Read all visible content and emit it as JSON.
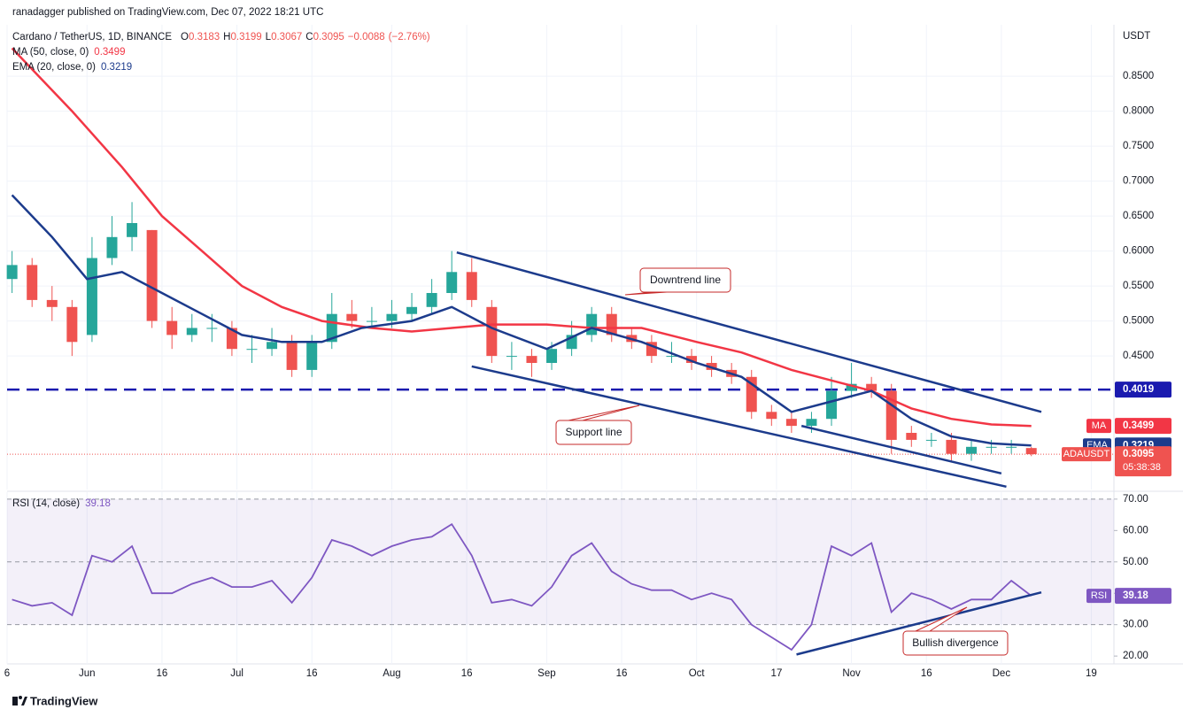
{
  "header": "ranadagger published on TradingView.com, Dec 07, 2022 18:21 UTC",
  "footer": "TradingView",
  "chart_data": [
    {
      "type": "candlestick",
      "title": "Cardano / TetherUS, 1D, BINANCE",
      "symbol": "ADAUSDT",
      "countdown": "05:38:38",
      "axis_label": "USDT",
      "x": [
        "2022-05-17",
        "2022-05-21",
        "2022-05-25",
        "2022-05-29",
        "2022-06-02",
        "2022-06-06",
        "2022-06-10",
        "2022-06-14",
        "2022-06-18",
        "2022-06-22",
        "2022-06-26",
        "2022-06-30",
        "2022-07-04",
        "2022-07-08",
        "2022-07-12",
        "2022-07-16",
        "2022-07-20",
        "2022-07-24",
        "2022-07-28",
        "2022-08-01",
        "2022-08-05",
        "2022-08-09",
        "2022-08-13",
        "2022-08-17",
        "2022-08-21",
        "2022-08-25",
        "2022-08-29",
        "2022-09-02",
        "2022-09-06",
        "2022-09-10",
        "2022-09-14",
        "2022-09-18",
        "2022-09-22",
        "2022-09-26",
        "2022-09-30",
        "2022-10-04",
        "2022-10-08",
        "2022-10-12",
        "2022-10-16",
        "2022-10-20",
        "2022-10-24",
        "2022-10-28",
        "2022-11-01",
        "2022-11-05",
        "2022-11-09",
        "2022-11-13",
        "2022-11-17",
        "2022-11-21",
        "2022-11-25",
        "2022-11-29",
        "2022-12-03",
        "2022-12-07"
      ],
      "open": [
        0.56,
        0.58,
        0.53,
        0.52,
        0.48,
        0.59,
        0.62,
        0.63,
        0.5,
        0.48,
        0.49,
        0.49,
        0.46,
        0.46,
        0.47,
        0.43,
        0.47,
        0.51,
        0.5,
        0.5,
        0.51,
        0.52,
        0.54,
        0.57,
        0.52,
        0.45,
        0.45,
        0.44,
        0.46,
        0.48,
        0.51,
        0.48,
        0.47,
        0.45,
        0.45,
        0.44,
        0.43,
        0.42,
        0.37,
        0.36,
        0.35,
        0.36,
        0.4,
        0.41,
        0.4,
        0.34,
        0.33,
        0.33,
        0.31,
        0.32,
        0.32,
        0.3183
      ],
      "high": [
        0.6,
        0.59,
        0.55,
        0.53,
        0.62,
        0.65,
        0.67,
        0.63,
        0.52,
        0.51,
        0.51,
        0.5,
        0.48,
        0.49,
        0.48,
        0.48,
        0.54,
        0.53,
        0.52,
        0.53,
        0.54,
        0.56,
        0.6,
        0.59,
        0.53,
        0.47,
        0.46,
        0.47,
        0.5,
        0.52,
        0.52,
        0.49,
        0.48,
        0.47,
        0.46,
        0.45,
        0.44,
        0.43,
        0.38,
        0.37,
        0.37,
        0.42,
        0.44,
        0.42,
        0.41,
        0.35,
        0.34,
        0.34,
        0.33,
        0.33,
        0.33,
        0.3199
      ],
      "low": [
        0.54,
        0.52,
        0.5,
        0.45,
        0.47,
        0.58,
        0.6,
        0.49,
        0.46,
        0.47,
        0.47,
        0.45,
        0.44,
        0.45,
        0.42,
        0.42,
        0.46,
        0.49,
        0.49,
        0.49,
        0.5,
        0.51,
        0.53,
        0.52,
        0.44,
        0.43,
        0.42,
        0.43,
        0.45,
        0.47,
        0.47,
        0.46,
        0.44,
        0.44,
        0.43,
        0.42,
        0.41,
        0.36,
        0.35,
        0.34,
        0.34,
        0.35,
        0.39,
        0.39,
        0.31,
        0.32,
        0.32,
        0.3,
        0.3,
        0.31,
        0.31,
        0.3067
      ],
      "close": [
        0.58,
        0.53,
        0.52,
        0.47,
        0.59,
        0.62,
        0.64,
        0.5,
        0.48,
        0.49,
        0.49,
        0.46,
        0.46,
        0.47,
        0.43,
        0.47,
        0.51,
        0.5,
        0.5,
        0.51,
        0.52,
        0.54,
        0.57,
        0.53,
        0.45,
        0.45,
        0.44,
        0.46,
        0.48,
        0.51,
        0.48,
        0.47,
        0.45,
        0.45,
        0.44,
        0.43,
        0.42,
        0.37,
        0.36,
        0.35,
        0.36,
        0.4,
        0.41,
        0.4,
        0.33,
        0.33,
        0.33,
        0.31,
        0.32,
        0.32,
        0.32,
        0.3095
      ],
      "up_color": "#26a69a",
      "down_color": "#ef5350",
      "ohlc_keys": [
        "O",
        "H",
        "L",
        "C"
      ],
      "change": {
        "value": -0.0088,
        "label": "−0.0088"
      },
      "change_pct": {
        "value": -2.76,
        "label": "(−2.76%)"
      },
      "series": [
        {
          "name": "MA (50, close, 0)",
          "short": "MA",
          "color": "#f23645",
          "x": [
            "2022-05-17",
            "2022-05-29",
            "2022-06-08",
            "2022-06-16",
            "2022-06-24",
            "2022-07-02",
            "2022-07-10",
            "2022-07-18",
            "2022-07-28",
            "2022-08-05",
            "2022-08-13",
            "2022-08-21",
            "2022-09-01",
            "2022-09-10",
            "2022-09-20",
            "2022-10-01",
            "2022-10-10",
            "2022-10-20",
            "2022-10-28",
            "2022-11-05",
            "2022-11-13",
            "2022-11-21",
            "2022-11-29",
            "2022-12-07"
          ],
          "values": [
            0.89,
            0.8,
            0.72,
            0.65,
            0.6,
            0.55,
            0.52,
            0.5,
            0.49,
            0.485,
            0.49,
            0.495,
            0.495,
            0.49,
            0.49,
            0.47,
            0.455,
            0.43,
            0.415,
            0.4,
            0.375,
            0.36,
            0.352,
            0.3499
          ]
        },
        {
          "name": "EMA (20, close, 0)",
          "short": "EMA",
          "color": "#1c3b8c",
          "x": [
            "2022-05-17",
            "2022-05-25",
            "2022-06-01",
            "2022-06-08",
            "2022-06-16",
            "2022-06-24",
            "2022-07-02",
            "2022-07-10",
            "2022-07-18",
            "2022-07-26",
            "2022-08-05",
            "2022-08-13",
            "2022-08-21",
            "2022-09-01",
            "2022-09-10",
            "2022-09-20",
            "2022-10-01",
            "2022-10-10",
            "2022-10-20",
            "2022-10-28",
            "2022-11-05",
            "2022-11-13",
            "2022-11-21",
            "2022-11-29",
            "2022-12-07"
          ],
          "values": [
            0.68,
            0.62,
            0.56,
            0.57,
            0.54,
            0.51,
            0.48,
            0.47,
            0.47,
            0.49,
            0.5,
            0.52,
            0.49,
            0.46,
            0.49,
            0.47,
            0.44,
            0.42,
            0.37,
            0.385,
            0.4,
            0.36,
            0.335,
            0.325,
            0.3219
          ]
        }
      ],
      "level": {
        "value": 0.4019,
        "color": "#1a1aaf"
      },
      "trendlines": [
        {
          "label": "Downtrend line",
          "x": [
            "2022-08-14",
            "2022-12-09"
          ],
          "y": [
            0.598,
            0.37
          ]
        },
        {
          "label": "Support line",
          "x": [
            "2022-08-17",
            "2022-12-02"
          ],
          "y": [
            0.435,
            0.263
          ]
        },
        {
          "x": [
            "2022-10-22",
            "2022-12-01"
          ],
          "y": [
            0.35,
            0.282
          ]
        }
      ],
      "trendline_color": "#1c3b8c",
      "annotation_color": "#c62828",
      "ylim": [
        0.259,
        0.921
      ],
      "yticks": [
        {
          "value": 0.85,
          "label": "0.8500"
        },
        {
          "value": 0.8,
          "label": "0.8000"
        },
        {
          "value": 0.75,
          "label": "0.7500"
        },
        {
          "value": 0.7,
          "label": "0.7000"
        },
        {
          "value": 0.65,
          "label": "0.6500"
        },
        {
          "value": 0.6,
          "label": "0.6000"
        },
        {
          "value": 0.55,
          "label": "0.5500"
        },
        {
          "value": 0.5,
          "label": "0.5000"
        },
        {
          "value": 0.45,
          "label": "0.4500"
        }
      ],
      "xlim": [
        "2022-05-16",
        "2022-12-23"
      ],
      "xticks": [
        {
          "value": "2022-05-16",
          "label": "6"
        },
        {
          "value": "2022-06-01",
          "label": "Jun"
        },
        {
          "value": "2022-06-16",
          "label": "16"
        },
        {
          "value": "2022-07-01",
          "label": "Jul"
        },
        {
          "value": "2022-07-16",
          "label": "16"
        },
        {
          "value": "2022-08-01",
          "label": "Aug"
        },
        {
          "value": "2022-08-16",
          "label": "16"
        },
        {
          "value": "2022-09-01",
          "label": "Sep"
        },
        {
          "value": "2022-09-16",
          "label": "16"
        },
        {
          "value": "2022-10-01",
          "label": "Oct"
        },
        {
          "value": "2022-10-17",
          "label": "17"
        },
        {
          "value": "2022-11-01",
          "label": "Nov"
        },
        {
          "value": "2022-11-16",
          "label": "16"
        },
        {
          "value": "2022-12-01",
          "label": "Dec"
        },
        {
          "value": "2022-12-19",
          "label": "19"
        }
      ],
      "grid": true
    },
    {
      "type": "line",
      "title": "RSI (14, close)",
      "x": [
        "2022-05-17",
        "2022-05-21",
        "2022-05-25",
        "2022-05-29",
        "2022-06-02",
        "2022-06-06",
        "2022-06-10",
        "2022-06-14",
        "2022-06-18",
        "2022-06-22",
        "2022-06-26",
        "2022-06-30",
        "2022-07-04",
        "2022-07-08",
        "2022-07-12",
        "2022-07-16",
        "2022-07-20",
        "2022-07-24",
        "2022-07-28",
        "2022-08-01",
        "2022-08-05",
        "2022-08-09",
        "2022-08-13",
        "2022-08-17",
        "2022-08-21",
        "2022-08-25",
        "2022-08-29",
        "2022-09-02",
        "2022-09-06",
        "2022-09-10",
        "2022-09-14",
        "2022-09-18",
        "2022-09-22",
        "2022-09-26",
        "2022-09-30",
        "2022-10-04",
        "2022-10-08",
        "2022-10-12",
        "2022-10-16",
        "2022-10-20",
        "2022-10-24",
        "2022-10-28",
        "2022-11-01",
        "2022-11-05",
        "2022-11-09",
        "2022-11-13",
        "2022-11-17",
        "2022-11-21",
        "2022-11-25",
        "2022-11-29",
        "2022-12-03",
        "2022-12-07"
      ],
      "series": [
        {
          "name": "RSI",
          "color": "#7e57c2",
          "values": [
            38,
            36,
            37,
            33,
            52,
            50,
            55,
            40,
            40,
            43,
            45,
            42,
            42,
            44,
            37,
            45,
            57,
            55,
            52,
            55,
            57,
            58,
            62,
            52,
            37,
            38,
            36,
            42,
            52,
            56,
            47,
            43,
            41,
            41,
            38,
            40,
            38,
            30,
            26,
            22,
            30,
            55,
            52,
            56,
            34,
            40,
            38,
            35,
            38,
            38,
            44,
            39.18
          ]
        }
      ],
      "band": [
        30,
        70
      ],
      "levels": [
        70,
        50,
        30
      ],
      "trendlines": [
        {
          "label": "Bullish divergence",
          "x": [
            "2022-10-21",
            "2022-12-09"
          ],
          "y": [
            20.5,
            40.3
          ]
        }
      ],
      "ylim": [
        17.5,
        72.5
      ],
      "yticks": [
        {
          "value": 70,
          "label": "70.00"
        },
        {
          "value": 60,
          "label": "60.00"
        },
        {
          "value": 50,
          "label": "50.00"
        },
        {
          "value": 40,
          "label": "40.00"
        },
        {
          "value": 30,
          "label": "30.00"
        },
        {
          "value": 20,
          "label": "20.00"
        }
      ]
    }
  ]
}
